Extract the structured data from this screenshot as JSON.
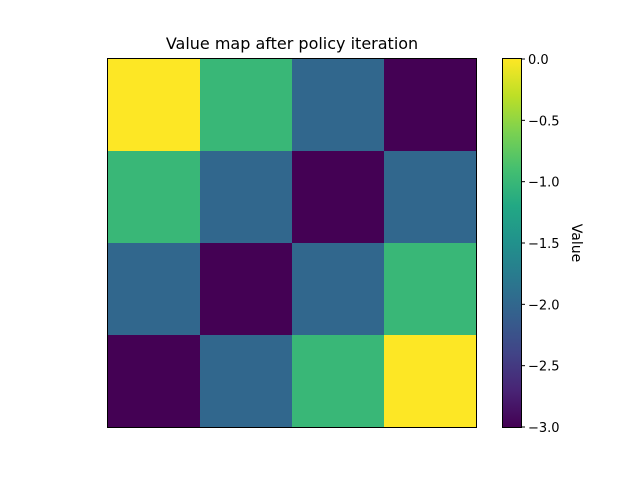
{
  "chart_data": {
    "type": "heatmap",
    "title": "Value map after policy iteration",
    "xlabel": "",
    "ylabel": "",
    "rows": 4,
    "cols": 4,
    "values": [
      [
        0,
        -1,
        -2,
        -3
      ],
      [
        -1,
        -2,
        -3,
        -2
      ],
      [
        -2,
        -3,
        -2,
        -1
      ],
      [
        -3,
        -2,
        -1,
        0
      ]
    ],
    "colormap": "viridis",
    "value_range": [
      -3,
      0
    ],
    "x_ticks_shown": false,
    "y_ticks_shown": false,
    "colorbar": {
      "label": "Value",
      "ticks": [
        0,
        -0.5,
        -1,
        -1.5,
        -2,
        -2.5,
        -3
      ],
      "tick_labels": [
        "0.0",
        "−0.5",
        "−1.0",
        "−1.5",
        "−2.0",
        "−2.5",
        "−3.0"
      ]
    }
  }
}
